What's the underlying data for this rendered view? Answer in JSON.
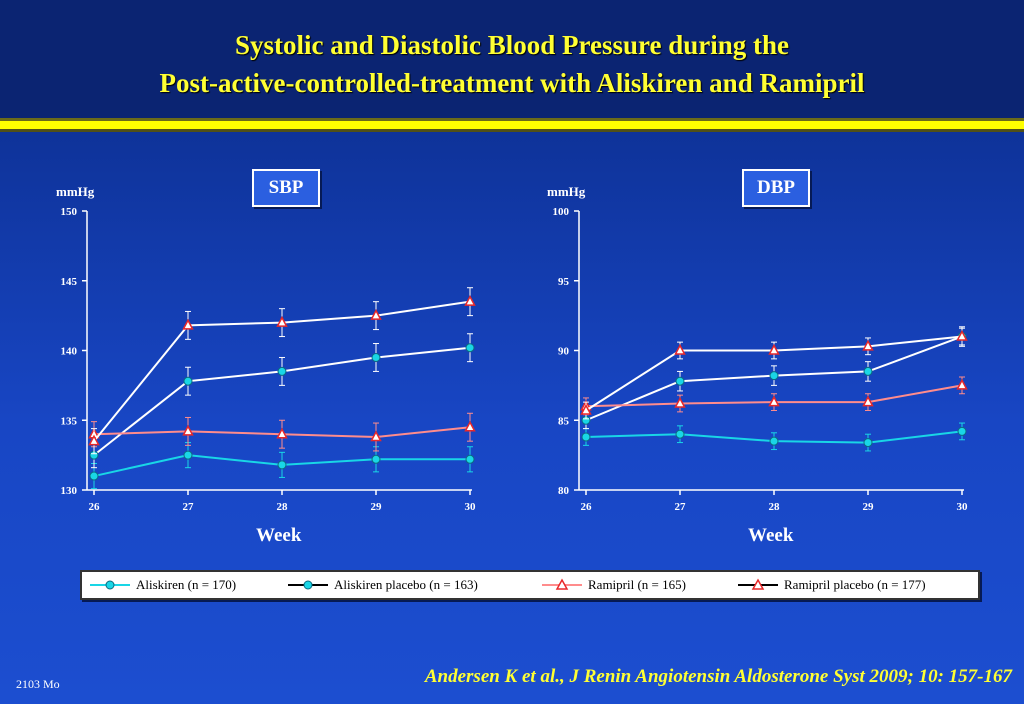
{
  "slide": {
    "title_line1": "Systolic and Diastolic Blood Pressure during the",
    "title_line2": "Post-active-controlled-treatment with Aliskiren and Ramipril",
    "footer_code": "2103 Mo",
    "citation": "Andersen K et al., J Renin Angiotensin Aldosterone Syst 2009; 10: 157-167"
  },
  "colors": {
    "aliskiren": "#19d6e6",
    "aliskiren_placebo": "#ffffff",
    "ramipril": "#ff8c8c",
    "ramipril_placebo": "#ffffff",
    "marker_red": "#e8282a"
  },
  "legend": [
    {
      "label": "Aliskiren (n = 170)",
      "series": "aliskiren"
    },
    {
      "label": "Aliskiren placebo (n = 163)",
      "series": "aliskiren_placebo"
    },
    {
      "label": "Ramipril (n = 165)",
      "series": "ramipril"
    },
    {
      "label": "Ramipril placebo (n = 177)",
      "series": "ramipril_placebo"
    }
  ],
  "chart_data": [
    {
      "type": "line",
      "title": "SBP",
      "ylabel": "mmHg",
      "xlabel": "Week",
      "x": [
        26,
        27,
        28,
        29,
        30
      ],
      "ylim": [
        130,
        150
      ],
      "yticks": [
        130,
        135,
        140,
        145,
        150
      ],
      "grid": false,
      "legend_position": "bottom",
      "series": [
        {
          "name": "Aliskiren (n = 170)",
          "key": "aliskiren",
          "marker": "circle",
          "values": [
            131.0,
            132.5,
            131.8,
            132.2,
            132.2
          ],
          "errors": [
            0.9,
            0.9,
            0.9,
            0.9,
            0.9
          ]
        },
        {
          "name": "Aliskiren placebo (n = 163)",
          "key": "aliskiren_placebo",
          "marker": "circle",
          "values": [
            132.5,
            137.8,
            138.5,
            139.5,
            140.2
          ],
          "errors": [
            0.9,
            1.0,
            1.0,
            1.0,
            1.0
          ]
        },
        {
          "name": "Ramipril (n = 165)",
          "key": "ramipril",
          "marker": "triangle",
          "values": [
            134.0,
            134.2,
            134.0,
            133.8,
            134.5
          ],
          "errors": [
            0.9,
            1.0,
            1.0,
            1.0,
            1.0
          ]
        },
        {
          "name": "Ramipril placebo (n = 177)",
          "key": "ramipril_placebo",
          "marker": "triangle",
          "values": [
            133.5,
            141.8,
            142.0,
            142.5,
            143.5
          ],
          "errors": [
            0.9,
            1.0,
            1.0,
            1.0,
            1.0
          ]
        }
      ]
    },
    {
      "type": "line",
      "title": "DBP",
      "ylabel": "mmHg",
      "xlabel": "Week",
      "x": [
        26,
        27,
        28,
        29,
        30
      ],
      "ylim": [
        80,
        100
      ],
      "yticks": [
        80,
        85,
        90,
        95,
        100
      ],
      "grid": false,
      "legend_position": "bottom",
      "series": [
        {
          "name": "Aliskiren (n = 170)",
          "key": "aliskiren",
          "marker": "circle",
          "values": [
            83.8,
            84.0,
            83.5,
            83.4,
            84.2
          ],
          "errors": [
            0.6,
            0.6,
            0.6,
            0.6,
            0.6
          ]
        },
        {
          "name": "Aliskiren placebo (n = 163)",
          "key": "aliskiren_placebo",
          "marker": "circle",
          "values": [
            85.0,
            87.8,
            88.2,
            88.5,
            91.0
          ],
          "errors": [
            0.6,
            0.7,
            0.7,
            0.7,
            0.7
          ]
        },
        {
          "name": "Ramipril (n = 165)",
          "key": "ramipril",
          "marker": "triangle",
          "values": [
            86.0,
            86.2,
            86.3,
            86.3,
            87.5
          ],
          "errors": [
            0.6,
            0.6,
            0.6,
            0.6,
            0.6
          ]
        },
        {
          "name": "Ramipril placebo (n = 177)",
          "key": "ramipril_placebo",
          "marker": "triangle",
          "values": [
            85.7,
            90.0,
            90.0,
            90.3,
            91.0
          ],
          "errors": [
            0.6,
            0.6,
            0.6,
            0.6,
            0.6
          ]
        }
      ]
    }
  ]
}
